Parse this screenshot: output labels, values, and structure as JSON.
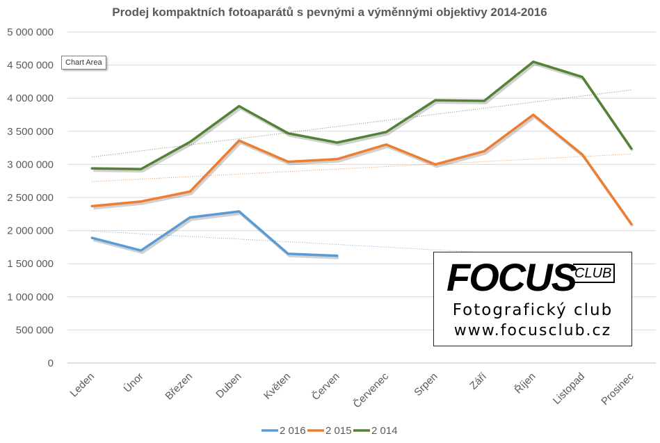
{
  "tooltip": "Chart Area",
  "logo": {
    "brand": "FOCUS",
    "club": "CLUB",
    "line1": "Fotografický club",
    "line2": "www.focusclub.cz"
  },
  "chart_data": {
    "type": "line",
    "title": "Prodej kompaktních fotoaparátů s pevnými a výměnnými objektivy 2014-2016",
    "xlabel": "",
    "ylabel": "",
    "ylim": [
      0,
      5000000
    ],
    "yticks": [
      0,
      500000,
      1000000,
      1500000,
      2000000,
      2500000,
      3000000,
      3500000,
      4000000,
      4500000,
      5000000
    ],
    "ytick_labels": [
      "0",
      "500 000",
      "1 000 000",
      "1 500 000",
      "2 000 000",
      "2 500 000",
      "3 000 000",
      "3 500 000",
      "4 000 000",
      "4 500 000",
      "5 000 000"
    ],
    "categories": [
      "Leden",
      "Únor",
      "Březen",
      "Duben",
      "Květen",
      "Červen",
      "Červenec",
      "Srpen",
      "Září",
      "Říjen",
      "Listopad",
      "Prosinec"
    ],
    "grid": true,
    "legend_position": "bottom",
    "trendlines": true,
    "series": [
      {
        "name": "2 016",
        "color": "#5b9bd5",
        "values": [
          1890000,
          1700000,
          2200000,
          2290000,
          1650000,
          1620000,
          null,
          null,
          null,
          null,
          null,
          null
        ]
      },
      {
        "name": "2 015",
        "color": "#ed7d31",
        "values": [
          2370000,
          2440000,
          2590000,
          3360000,
          3040000,
          3080000,
          3300000,
          3000000,
          3200000,
          3750000,
          3150000,
          2100000
        ]
      },
      {
        "name": "2 014",
        "color": "#548235",
        "values": [
          2940000,
          2930000,
          3340000,
          3880000,
          3470000,
          3330000,
          3490000,
          3970000,
          3960000,
          4550000,
          4320000,
          3240000
        ]
      }
    ]
  }
}
